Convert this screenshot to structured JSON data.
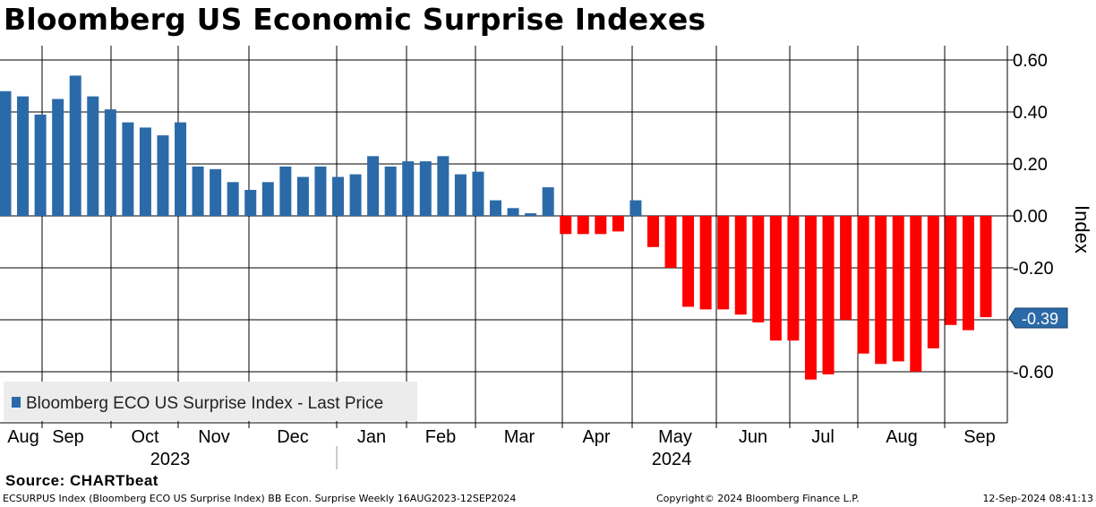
{
  "title": "Bloomberg US Economic Surprise Indexes",
  "source": "Source: CHARTbeat",
  "footer": {
    "left": "ECSURPUS Index (Bloomberg ECO US Surprise Index) BB Econ. Surprise  Weekly 16AUG2023-12SEP2024",
    "center": "Copyright© 2024 Bloomberg Finance L.P.",
    "right": "12-Sep-2024 08:41:13"
  },
  "colors": {
    "positive": "#2b6aa8",
    "negative": "#ff0000",
    "grid": "#000000",
    "label_box": "#2b6aa8"
  },
  "chart_data": {
    "type": "bar",
    "title": "Bloomberg US Economic Surprise Indexes",
    "ylabel": "Index",
    "ylim": [
      -0.8,
      0.6
    ],
    "y_ticks": [
      0.6,
      0.4,
      0.2,
      0.0,
      -0.2,
      -0.4,
      -0.6
    ],
    "y_tick_labels": [
      "0.60",
      "0.40",
      "0.20",
      "0.00",
      "-0.20",
      "",
      "-0.60"
    ],
    "y_axis_side": "right",
    "legend": "Bloomberg ECO US Surprise Index - Last Price",
    "legend_position": "bottom-left",
    "last_value_label": "-0.39",
    "last_value": -0.39,
    "month_labels": [
      "Aug",
      "Sep",
      "Oct",
      "Nov",
      "Dec",
      "Jan",
      "Feb",
      "Mar",
      "Apr",
      "May",
      "Jun",
      "Jul",
      "Aug",
      "Sep"
    ],
    "year_labels": [
      "2023",
      "2024"
    ],
    "frequency": "Weekly",
    "period": "16AUG2023-12SEP2024",
    "values": [
      0.48,
      0.46,
      0.39,
      0.45,
      0.54,
      0.46,
      0.41,
      0.36,
      0.34,
      0.31,
      0.36,
      0.19,
      0.18,
      0.13,
      0.1,
      0.13,
      0.19,
      0.15,
      0.19,
      0.15,
      0.16,
      0.23,
      0.19,
      0.21,
      0.21,
      0.23,
      0.16,
      0.17,
      0.06,
      0.03,
      0.01,
      0.11,
      -0.07,
      -0.07,
      -0.07,
      -0.06,
      0.06,
      -0.12,
      -0.2,
      -0.35,
      -0.36,
      -0.36,
      -0.38,
      -0.41,
      -0.48,
      -0.48,
      -0.63,
      -0.61,
      -0.4,
      -0.53,
      -0.57,
      -0.56,
      -0.6,
      -0.51,
      -0.42,
      -0.44,
      -0.39
    ]
  }
}
